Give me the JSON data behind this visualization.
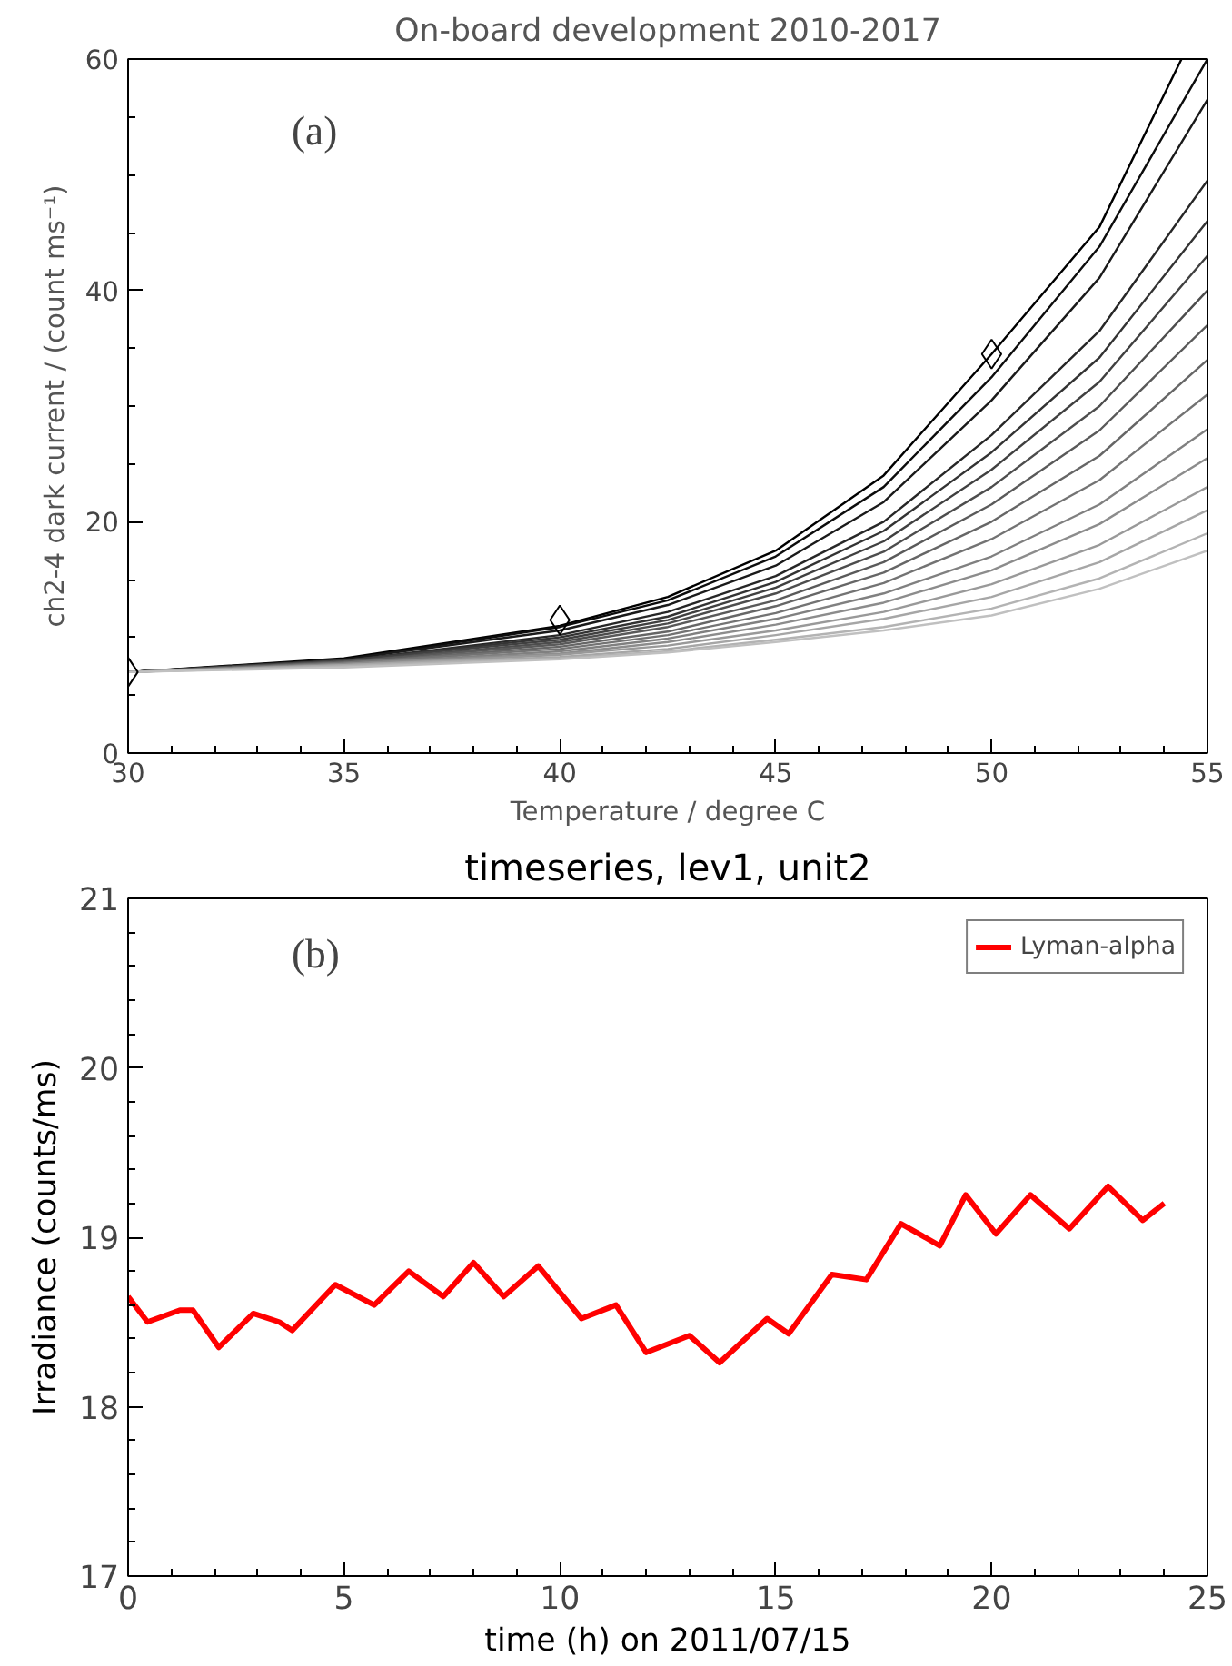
{
  "chart_data": [
    {
      "type": "line",
      "title": "On-board development 2010-2017",
      "xlabel": "Temperature / degree C",
      "ylabel": "ch2-4 dark current / (count ms⁻¹)",
      "xlim": [
        30,
        55
      ],
      "ylim": [
        0,
        60
      ],
      "xticks": [
        30,
        35,
        40,
        45,
        50,
        55
      ],
      "yticks": [
        0,
        20,
        40,
        60
      ],
      "annotations": [
        "(a)"
      ],
      "marker": "none",
      "line_style": "solid",
      "series": [
        {
          "color": "#000000",
          "x": [
            30,
            35,
            40,
            42.5,
            45,
            47.5,
            50,
            52.5,
            54.4
          ],
          "values": [
            7,
            8.2,
            11,
            13.5,
            17.5,
            24,
            34.5,
            45.5,
            60
          ]
        },
        {
          "color": "#0d0d0d",
          "x": [
            30,
            35,
            40,
            42.5,
            45,
            47.5,
            50,
            52.5,
            55
          ],
          "values": [
            7,
            8.1,
            10.9,
            13.2,
            17,
            23,
            32.5,
            43.8,
            60
          ]
        },
        {
          "color": "#1a1a1a",
          "x": [
            30,
            35,
            40,
            42.5,
            45,
            47.5,
            50,
            52.5,
            55
          ],
          "values": [
            7,
            8.1,
            10.6,
            12.8,
            16.2,
            21.7,
            30.5,
            41.1,
            56.5
          ]
        },
        {
          "color": "#272727",
          "x": [
            30,
            35,
            40,
            42.5,
            45,
            47.5,
            50,
            52.5,
            55
          ],
          "values": [
            7,
            8,
            10.2,
            12.2,
            15.3,
            20,
            27.5,
            36.5,
            49.5
          ]
        },
        {
          "color": "#333333",
          "x": [
            30,
            35,
            40,
            42.5,
            45,
            47.5,
            50,
            52.5,
            55
          ],
          "values": [
            7,
            8,
            10,
            11.8,
            14.8,
            19.2,
            26,
            34.2,
            46
          ]
        },
        {
          "color": "#404040",
          "x": [
            30,
            35,
            40,
            42.5,
            45,
            47.5,
            50,
            52.5,
            55
          ],
          "values": [
            7,
            8,
            9.8,
            11.5,
            14.3,
            18.3,
            24.5,
            32.1,
            43
          ]
        },
        {
          "color": "#4d4d4d",
          "x": [
            30,
            35,
            40,
            42.5,
            45,
            47.5,
            50,
            52.5,
            55
          ],
          "values": [
            7,
            7.9,
            9.6,
            11.2,
            13.8,
            17.4,
            23,
            30,
            40
          ]
        },
        {
          "color": "#5a5a5a",
          "x": [
            30,
            35,
            40,
            42.5,
            45,
            47.5,
            50,
            52.5,
            55
          ],
          "values": [
            7,
            7.9,
            9.4,
            10.9,
            13.2,
            16.5,
            21.5,
            27.9,
            37
          ]
        },
        {
          "color": "#666666",
          "x": [
            30,
            35,
            40,
            42.5,
            45,
            47.5,
            50,
            52.5,
            55
          ],
          "values": [
            7,
            7.8,
            9.2,
            10.5,
            12.7,
            15.6,
            20,
            25.7,
            34
          ]
        },
        {
          "color": "#737373",
          "x": [
            30,
            35,
            40,
            42.5,
            45,
            47.5,
            50,
            52.5,
            55
          ],
          "values": [
            7,
            7.8,
            9,
            10.2,
            12.1,
            14.7,
            18.5,
            23.6,
            31
          ]
        },
        {
          "color": "#808080",
          "x": [
            30,
            35,
            40,
            42.5,
            45,
            47.5,
            50,
            52.5,
            55
          ],
          "values": [
            7,
            7.7,
            8.8,
            9.9,
            11.6,
            13.8,
            17,
            21.5,
            28
          ]
        },
        {
          "color": "#8c8c8c",
          "x": [
            30,
            35,
            40,
            42.5,
            45,
            47.5,
            50,
            52.5,
            55
          ],
          "values": [
            7,
            7.7,
            8.6,
            9.6,
            11.1,
            13,
            15.8,
            19.8,
            25.5
          ]
        },
        {
          "color": "#999999",
          "x": [
            30,
            35,
            40,
            42.5,
            45,
            47.5,
            50,
            52.5,
            55
          ],
          "values": [
            7,
            7.6,
            8.5,
            9.3,
            10.6,
            12.2,
            14.6,
            18,
            23
          ]
        },
        {
          "color": "#a6a6a6",
          "x": [
            30,
            35,
            40,
            42.5,
            45,
            47.5,
            50,
            52.5,
            55
          ],
          "values": [
            7,
            7.6,
            8.3,
            9,
            10.2,
            11.6,
            13.5,
            16.5,
            21
          ]
        },
        {
          "color": "#b3b3b3",
          "x": [
            30,
            35,
            40,
            42.5,
            45,
            47.5,
            50,
            52.5,
            55
          ],
          "values": [
            7,
            7.5,
            8.2,
            8.8,
            9.8,
            10.9,
            12.5,
            15.1,
            19
          ]
        },
        {
          "color": "#c0c0c0",
          "x": [
            30,
            35,
            40,
            42.5,
            45,
            47.5,
            50,
            52.5,
            55
          ],
          "values": [
            7,
            7.4,
            8.1,
            8.7,
            9.6,
            10.6,
            11.9,
            14.2,
            17.5
          ]
        },
        {
          "type": "scatter",
          "marker": "diamond",
          "color": "#000000",
          "x": [
            30,
            40,
            50
          ],
          "values": [
            7,
            11.5,
            34.5
          ]
        }
      ]
    },
    {
      "type": "line",
      "title": "timeseries, lev1, unit2",
      "xlabel": "time (h) on 2011/07/15",
      "ylabel": "Irradiance (counts/ms)",
      "xlim": [
        0,
        25
      ],
      "ylim": [
        17,
        21
      ],
      "xticks": [
        0,
        5,
        10,
        15,
        20,
        25
      ],
      "yticks": [
        17,
        18,
        19,
        20,
        21
      ],
      "annotations": [
        "(b)"
      ],
      "legend": "top right",
      "marker": "none",
      "line_style": "solid",
      "series": [
        {
          "name": "Lyman-alpha",
          "color": "#ff0000",
          "x": [
            0,
            0.45,
            1.2,
            1.5,
            2.1,
            2.9,
            3.5,
            3.8,
            4.8,
            5.7,
            6.5,
            7.3,
            8.0,
            8.7,
            9.5,
            10.5,
            11.3,
            12.0,
            13.0,
            13.7,
            14.8,
            15.3,
            16.3,
            17.1,
            17.9,
            18.8,
            19.4,
            20.1,
            20.9,
            21.8,
            22.7,
            23.5,
            24.0
          ],
          "values": [
            18.65,
            18.5,
            18.57,
            18.57,
            18.35,
            18.55,
            18.5,
            18.45,
            18.72,
            18.6,
            18.8,
            18.65,
            18.85,
            18.65,
            18.83,
            18.52,
            18.6,
            18.32,
            18.42,
            18.26,
            18.52,
            18.43,
            18.78,
            18.75,
            19.08,
            18.95,
            19.25,
            19.02,
            19.25,
            19.05,
            19.3,
            19.1,
            19.2
          ]
        }
      ]
    }
  ]
}
